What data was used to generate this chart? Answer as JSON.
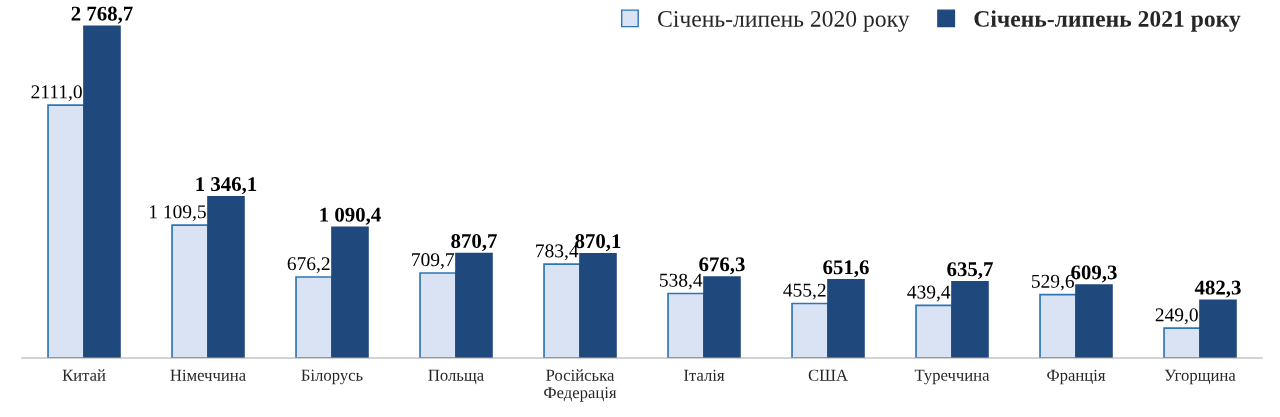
{
  "chart_data": {
    "type": "bar",
    "categories": [
      "Китай",
      "Німеччина",
      "Білорусь",
      "Польща",
      "Російська\nФедерація",
      "Італія",
      "США",
      "Туреччина",
      "Франція",
      "Угорщина"
    ],
    "series": [
      {
        "name": "Січень-липень 2020 року",
        "color": "#dae3f3",
        "values": [
          2111.0,
          1109.5,
          676.2,
          709.7,
          783.4,
          538.4,
          455.2,
          439.4,
          529.6,
          249.0
        ],
        "value_labels": [
          "2111,0",
          "1 109,5",
          "676,2",
          "709,7",
          "783,4",
          "538,4",
          "455,2",
          "439,4",
          "529,6",
          "249,0"
        ]
      },
      {
        "name": "Січень-липень 2021 року",
        "color": "#1f497d",
        "values": [
          2768.7,
          1346.1,
          1090.4,
          870.7,
          870.1,
          676.3,
          651.6,
          635.7,
          609.3,
          482.3
        ],
        "value_labels": [
          "2 768,7",
          "1 346,1",
          "1 090,4",
          "870,7",
          "870,1",
          "676,3",
          "651,6",
          "635,7",
          "609,3",
          "482,3"
        ]
      }
    ],
    "legend": "top right",
    "grid": false
  }
}
